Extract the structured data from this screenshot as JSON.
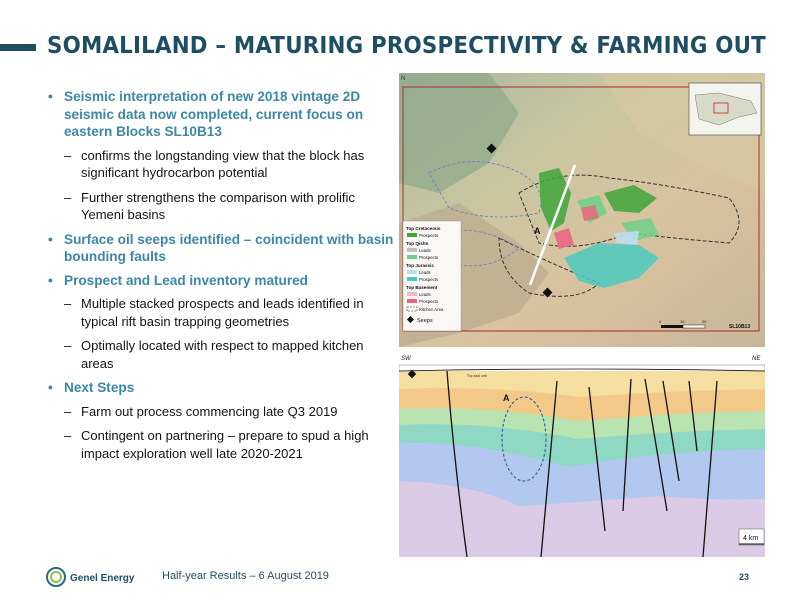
{
  "slide": {
    "title": "SOMALILAND – MATURING PROSPECTIVITY & FARMING OUT",
    "bullets": [
      {
        "text": "Seismic interpretation of new 2018 vintage 2D seismic data now completed, current focus on eastern Blocks SL10B13",
        "subs": [
          "confirms the longstanding view that the block has significant hydrocarbon potential",
          "Further strengthens the comparison with prolific Yemeni basins"
        ]
      },
      {
        "text": "Surface oil seeps identified – coincident with basin bounding faults",
        "subs": []
      },
      {
        "text": "Prospect and Lead inventory matured",
        "subs": [
          "Multiple stacked prospects and leads identified in typical rift basin trapping geometries",
          "Optimally located with respect to mapped kitchen areas"
        ]
      },
      {
        "text": "Next Steps",
        "subs": [
          "Farm out process commencing late Q3 2019",
          "Contingent on partnering – prepare to spud a high impact exploration well late 2020-2021"
        ]
      }
    ]
  },
  "map": {
    "north": "N",
    "line_label": "A",
    "block_name": "SL10B13",
    "legend": {
      "groups": [
        {
          "title": "Top Cretaceous",
          "items": [
            {
              "label": "Prospects",
              "color": "#3fa63a"
            }
          ]
        },
        {
          "title": "Top Qishn",
          "items": [
            {
              "label": "Leads",
              "color": "#c0c0c0"
            },
            {
              "label": "Prospects",
              "color": "#6fd08a"
            }
          ]
        },
        {
          "title": "Top Jurassic",
          "items": [
            {
              "label": "Leads",
              "color": "#bcdff0"
            },
            {
              "label": "Prospects",
              "color": "#4cc9c1"
            }
          ]
        },
        {
          "title": "Top Basement",
          "items": [
            {
              "label": "Leads",
              "color": "#f2b8c6"
            },
            {
              "label": "Prospects",
              "color": "#e8697f"
            }
          ]
        }
      ],
      "kitchen_label": "Kitchen Area",
      "seeps_label": "Seeps"
    },
    "scale_ticks": [
      "0",
      "10",
      "20"
    ]
  },
  "section": {
    "left_label": "SW",
    "right_label": "NE",
    "well_label": "A",
    "top_horizon_label": "Top seal unit",
    "scale_label": "4 km",
    "colors": {
      "yellow": "#f5dea0",
      "orange": "#f3c98a",
      "green": "#b9e3b0",
      "teal": "#8fd8c4",
      "blue": "#b3c8ee",
      "purple": "#dccbe6"
    }
  },
  "footer": {
    "brand": "Genel Energy",
    "text": "Half-year Results – 6 August 2019",
    "page": "23"
  }
}
